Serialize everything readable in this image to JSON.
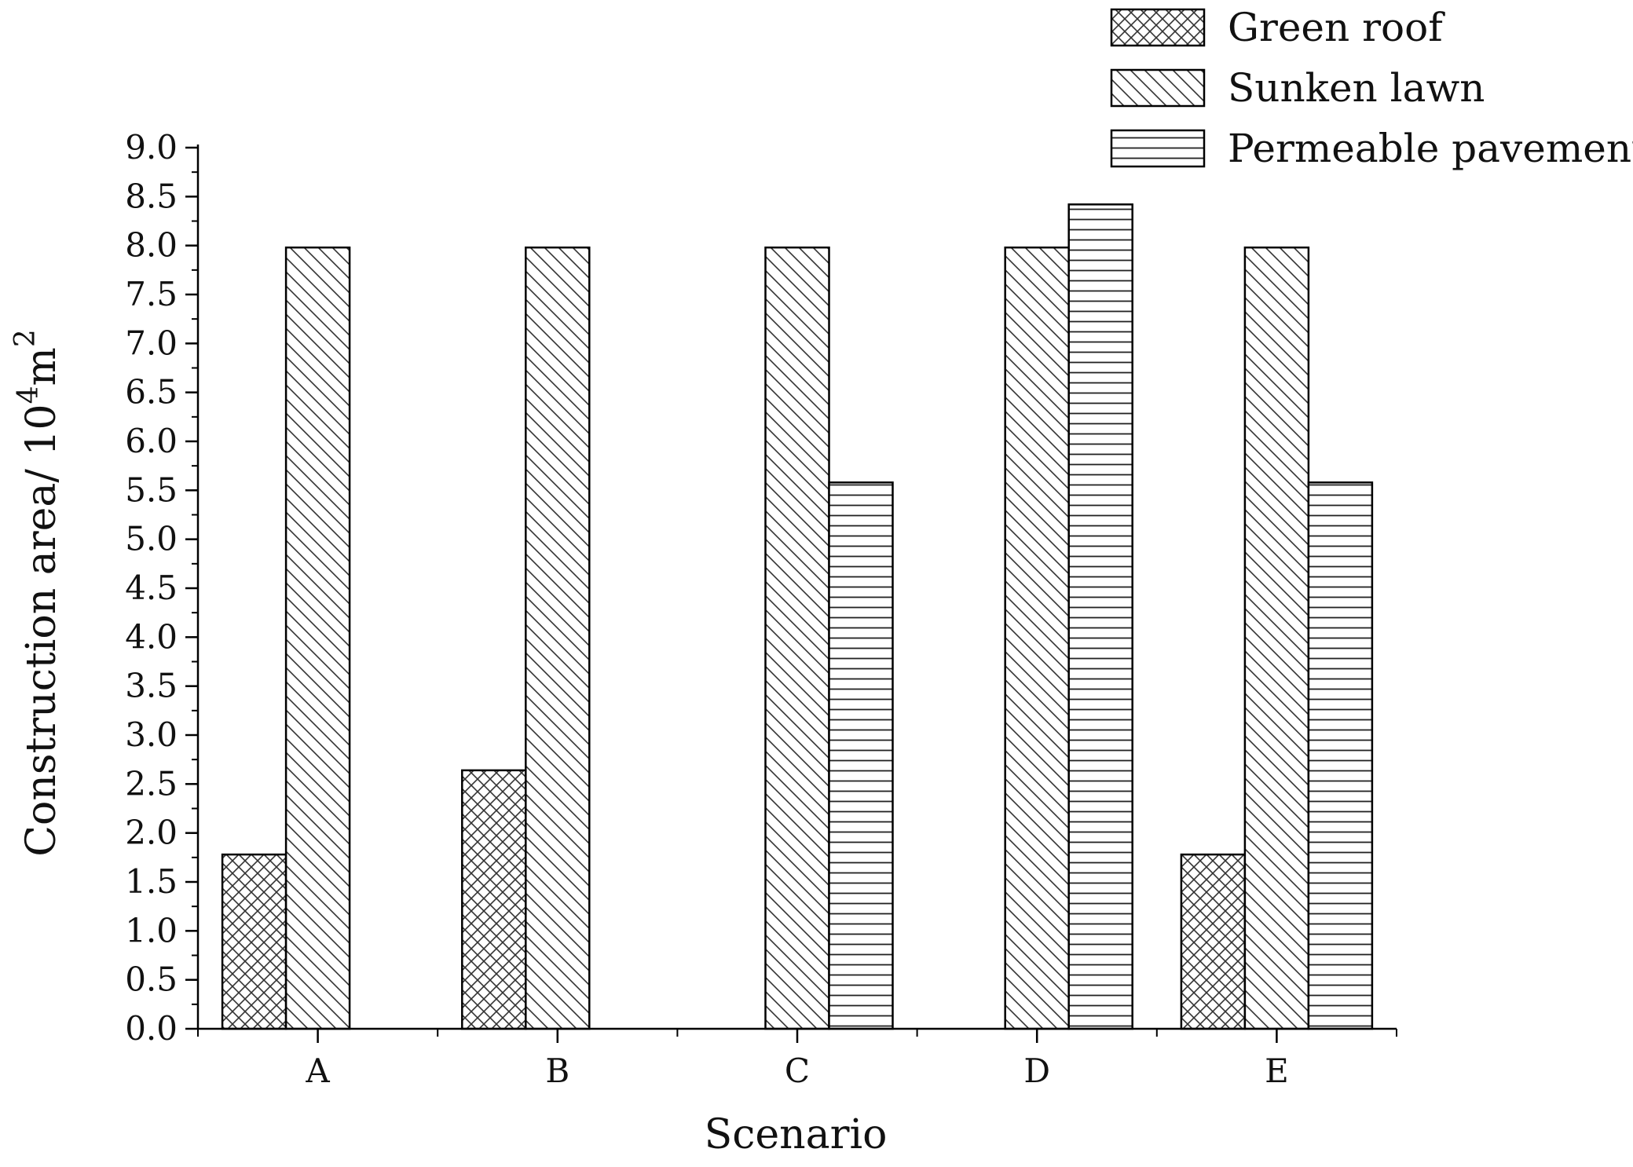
{
  "chart_data": {
    "type": "bar",
    "title": "",
    "xlabel": "Scenario",
    "ylabel": "Construction area/ 10",
    "ylabel_sup1": "4",
    "ylabel_mid": "m",
    "ylabel_sup2": "2",
    "categories": [
      "A",
      "B",
      "C",
      "D",
      "E"
    ],
    "ylim": [
      0,
      9
    ],
    "yticks": [
      "0.0",
      "0.5",
      "1.0",
      "1.5",
      "2.0",
      "2.5",
      "3.0",
      "3.5",
      "4.0",
      "4.5",
      "5.0",
      "5.5",
      "6.0",
      "6.5",
      "7.0",
      "7.5",
      "8.0",
      "8.5",
      "9.0"
    ],
    "legend_position": "top-right",
    "grid": false,
    "series": [
      {
        "name": "Green roof",
        "pattern": "crosshatch",
        "values": [
          1.78,
          2.64,
          0,
          0,
          1.78
        ]
      },
      {
        "name": "Sunken lawn",
        "pattern": "diagonal",
        "values": [
          7.98,
          7.98,
          7.98,
          7.98,
          7.98
        ]
      },
      {
        "name": "Permeable pavement",
        "pattern": "horizontal",
        "values": [
          0,
          0,
          5.58,
          8.42,
          5.58
        ]
      }
    ]
  }
}
